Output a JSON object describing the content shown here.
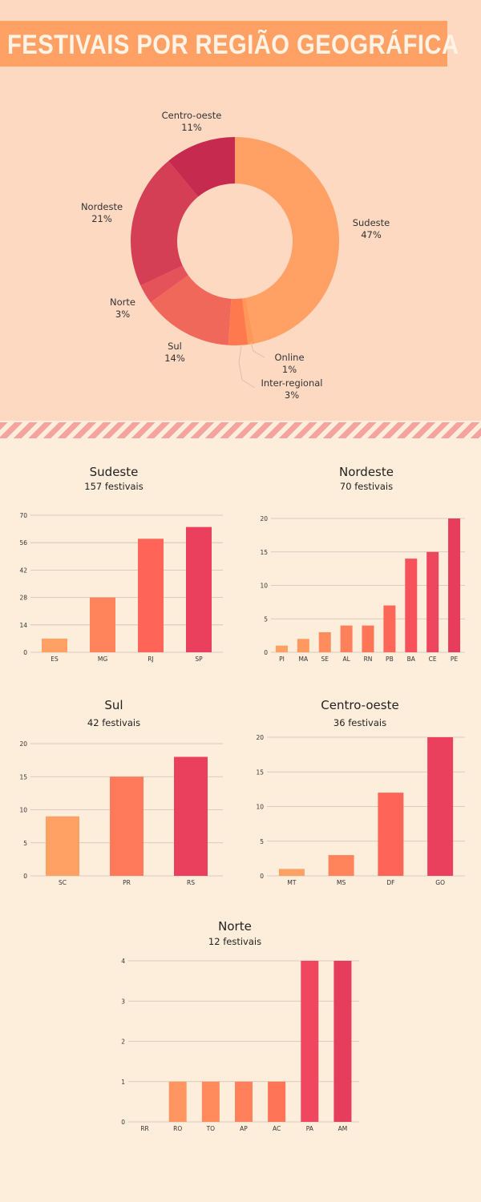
{
  "page_title": "FESTIVAIS POR REGIÃO GEOGRÁFICA",
  "colors": {
    "header_background": "#fdd9c2",
    "body_background": "#fdeedb",
    "title_bar": "#ffa164",
    "bar_palette": [
      "#ffa164",
      "#ff845c",
      "#fe6957",
      "#f0445e",
      "#e63b5c"
    ]
  },
  "chart_data": [
    {
      "type": "pie",
      "style": "donut",
      "labels": [
        "Sudeste",
        "Online",
        "Inter-regional",
        "Sul",
        "Norte",
        "Nordeste",
        "Centro-oeste"
      ],
      "values": [
        47,
        1,
        3,
        14,
        3,
        21,
        11
      ],
      "value_labels": [
        "47%",
        "1%",
        "3%",
        "14%",
        "3%",
        "21%",
        "11%"
      ],
      "colors": [
        "#ffa164",
        "#ff9758",
        "#fe7a4e",
        "#f0685a",
        "#e4525a",
        "#d43f55",
        "#c62b4f"
      ]
    },
    {
      "type": "bar",
      "title": "Sudeste",
      "subtitle": "157 festivais",
      "categories": [
        "ES",
        "MG",
        "RJ",
        "SP"
      ],
      "values": [
        7,
        28,
        58,
        64
      ],
      "yticks": [
        "0",
        "14",
        "28",
        "42",
        "56",
        "70"
      ],
      "ylim": [
        0,
        70
      ],
      "grid": true,
      "colors": [
        "#ffa164",
        "#ff845c",
        "#fe6458",
        "#ea405e"
      ]
    },
    {
      "type": "bar",
      "title": "Nordeste",
      "subtitle": "70 festivais",
      "categories": [
        "PI",
        "MA",
        "SE",
        "AL",
        "RN",
        "PB",
        "BA",
        "CE",
        "PE"
      ],
      "values": [
        1,
        2,
        3,
        4,
        4,
        7,
        14,
        15,
        20
      ],
      "yticks": [
        "0",
        "5",
        "10",
        "15",
        "20"
      ],
      "ylim": [
        0,
        20
      ],
      "grid": true,
      "colors": [
        "#ffa164",
        "#ff9960",
        "#ff8c5c",
        "#ff805a",
        "#fe7457",
        "#fd6757",
        "#f7525c",
        "#ef465f",
        "#e63d5d"
      ]
    },
    {
      "type": "bar",
      "title": "Sul",
      "subtitle": "42 festivais",
      "categories": [
        "SC",
        "PR",
        "RS"
      ],
      "values": [
        9,
        15,
        18
      ],
      "yticks": [
        "0",
        "5",
        "10",
        "15",
        "20"
      ],
      "ylim": [
        0,
        20
      ],
      "grid": true,
      "colors": [
        "#ffa164",
        "#ff7a5a",
        "#ea405e"
      ]
    },
    {
      "type": "bar",
      "title": "Centro-oeste",
      "subtitle": "36 festivais",
      "categories": [
        "MT",
        "MS",
        "DF",
        "GO"
      ],
      "values": [
        1,
        3,
        12,
        20
      ],
      "yticks": [
        "0",
        "5",
        "10",
        "15",
        "20"
      ],
      "ylim": [
        0,
        20
      ],
      "grid": true,
      "colors": [
        "#ffa164",
        "#ff845c",
        "#fe6458",
        "#ea405e"
      ]
    },
    {
      "type": "bar",
      "title": "Norte",
      "subtitle": "12 festivais",
      "categories": [
        "RR",
        "RO",
        "TO",
        "AP",
        "AC",
        "PA",
        "AM"
      ],
      "values": [
        0,
        1,
        1,
        1,
        1,
        4,
        4
      ],
      "yticks": [
        "0",
        "1",
        "2",
        "3",
        "4"
      ],
      "ylim": [
        0,
        4
      ],
      "grid": true,
      "colors": [
        "#ffa164",
        "#ff9560",
        "#ff8a5c",
        "#ff805a",
        "#fe7457",
        "#f0465f",
        "#e63d5d"
      ]
    }
  ]
}
